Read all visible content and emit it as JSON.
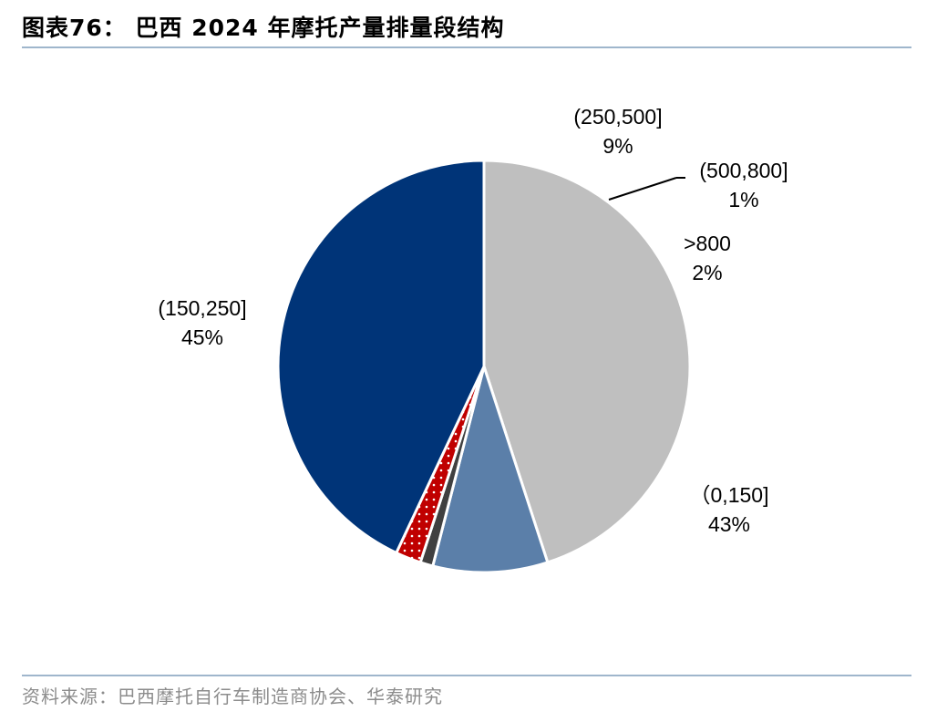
{
  "header": {
    "title": "图表76： 巴西 2024 年摩托产量排量段结构"
  },
  "footer": {
    "source": "资料来源：巴西摩托自行车制造商协会、华泰研究"
  },
  "colors": {
    "rule": "#9fb6cc",
    "background": "#ffffff",
    "slice_border": "#ffffff",
    "leader": "#000000"
  },
  "chart_data": {
    "type": "pie",
    "title": "",
    "slices": [
      {
        "label": "（0,150]",
        "value": 43,
        "value_label": "43%",
        "color": "#003478"
      },
      {
        "label": "(150,250]",
        "value": 45,
        "value_label": "45%",
        "color": "#bfbfbf"
      },
      {
        "label": "(250,500]",
        "value": 9,
        "value_label": "9%",
        "color": "#5b7fa9"
      },
      {
        "label": "(500,800]",
        "value": 1,
        "value_label": "1%",
        "color": "#404040"
      },
      {
        "label": ">800",
        "value": 2,
        "value_label": "2%",
        "color": "#c00000",
        "pattern": "white-dots"
      }
    ],
    "start_slice": "(150,250]",
    "direction": "clockwise",
    "start_angle": "12 o'clock",
    "legend": "none",
    "labels": "category and percentage outside slices"
  }
}
